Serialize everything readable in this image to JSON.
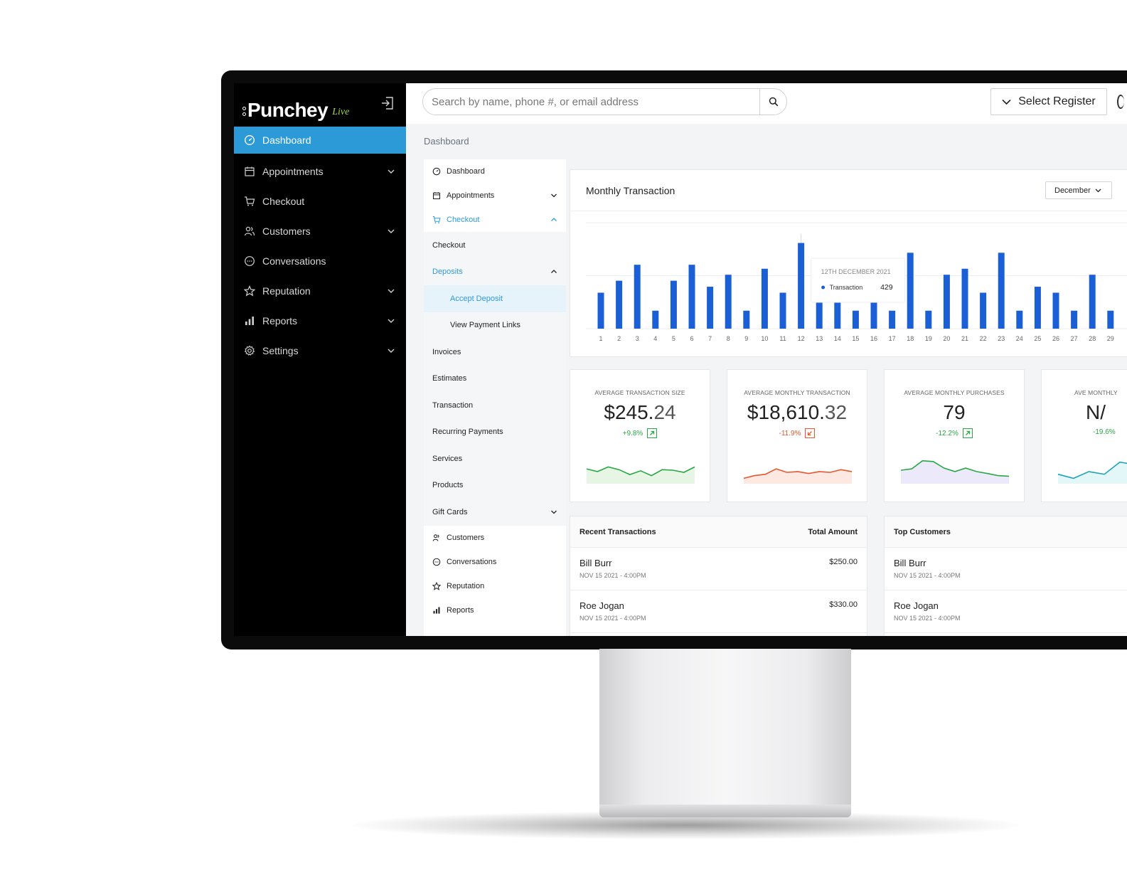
{
  "brand": {
    "name": "Punchey",
    "live": "Live"
  },
  "sidebar": {
    "items": [
      {
        "label": "Dashboard",
        "icon": "gauge-icon",
        "active": true
      },
      {
        "label": "Appointments",
        "icon": "calendar-icon",
        "expandable": true
      },
      {
        "label": "Checkout",
        "icon": "cart-icon"
      },
      {
        "label": "Customers",
        "icon": "users-icon",
        "expandable": true
      },
      {
        "label": "Conversations",
        "icon": "chat-icon"
      },
      {
        "label": "Reputation",
        "icon": "star-icon",
        "expandable": true
      },
      {
        "label": "Reports",
        "icon": "bar-chart-icon",
        "expandable": true
      },
      {
        "label": "Settings",
        "icon": "gear-icon",
        "expandable": true
      }
    ]
  },
  "topbar": {
    "search_placeholder": "Search by name, phone #, or email address",
    "register_label": "Select Register"
  },
  "breadcrumb": "Dashboard",
  "subnav": {
    "dashboard": "Dashboard",
    "appointments": "Appointments",
    "checkout": "Checkout",
    "checkout_children": {
      "checkout": "Checkout",
      "deposits": "Deposits",
      "accept_deposit": "Accept Deposit",
      "view_payment_links": "View Payment Links",
      "invoices": "Invoices",
      "estimates": "Estimates",
      "transaction": "Transaction",
      "recurring_payments": "Recurring Payments",
      "services": "Services",
      "products": "Products",
      "gift_cards": "Gift Cards"
    },
    "customers": "Customers",
    "conversations": "Conversations",
    "reputation": "Reputation",
    "reports": "Reports"
  },
  "chart_data": {
    "type": "bar",
    "title": "Monthly Transaction",
    "selected_month": "December",
    "categories": [
      "1",
      "2",
      "3",
      "4",
      "5",
      "6",
      "7",
      "8",
      "9",
      "10",
      "11",
      "12",
      "13",
      "14",
      "15",
      "16",
      "17",
      "18",
      "19",
      "20",
      "21",
      "22",
      "23",
      "24",
      "25",
      "26",
      "27",
      "28",
      "29"
    ],
    "values": [
      180,
      240,
      320,
      90,
      240,
      320,
      210,
      270,
      90,
      300,
      180,
      429,
      140,
      140,
      90,
      140,
      90,
      380,
      90,
      270,
      300,
      180,
      380,
      90,
      210,
      180,
      90,
      270,
      90
    ],
    "ylim": [
      0,
      520
    ],
    "grid": true,
    "color": "#1b5fd6",
    "tooltip": {
      "date": "12TH DECEMBER 2021",
      "series": "Transaction",
      "value": "429"
    }
  },
  "stats": [
    {
      "label": "AVERAGE TRANSACTION SIZE",
      "value_main": "$245.",
      "value_dec": "24",
      "delta": "+9.8%",
      "trend": "up",
      "color": "#27a844",
      "fill": "#e6f5e4",
      "spark": [
        0.55,
        0.45,
        0.62,
        0.52,
        0.34,
        0.48,
        0.3,
        0.52,
        0.5,
        0.42,
        0.62
      ]
    },
    {
      "label": "AVERAGE MONTHLY TRANSACTION",
      "value_main": "$18,610.",
      "value_dec": "32",
      "delta": "-11.9%",
      "trend": "down",
      "color": "#e4572e",
      "fill": "#fde8e2",
      "spark": [
        0.2,
        0.3,
        0.35,
        0.55,
        0.42,
        0.45,
        0.38,
        0.45,
        0.42,
        0.52,
        0.45
      ]
    },
    {
      "label": "AVERAGE MONTHLY PURCHASES",
      "value_main": "79",
      "value_dec": "",
      "delta": "-12.2%",
      "trend": "up",
      "color": "#27a844",
      "fill": "#ece9fb",
      "spark": [
        0.5,
        0.55,
        0.85,
        0.82,
        0.58,
        0.45,
        0.58,
        0.45,
        0.38,
        0.3,
        0.28
      ]
    },
    {
      "label": "AVE MONTHLY",
      "value_main": "N/",
      "value_dec": "",
      "delta": "-19.6%",
      "trend": "up",
      "color": "#1fa2b8",
      "fill": "#e3f6f8",
      "spark": [
        0.35,
        0.2,
        0.45,
        0.35,
        0.8,
        0.7,
        0.85,
        0.8
      ]
    }
  ],
  "recent_transactions": {
    "title": "Recent Transactions",
    "amount_header": "Total Amount",
    "rows": [
      {
        "name": "Bill Burr",
        "date": "NOV 15 2021 - 4:00PM",
        "amount": "$250.00"
      },
      {
        "name": "Roe Jogan",
        "date": "NOV 15 2021 - 4:00PM",
        "amount": "$330.00"
      }
    ]
  },
  "top_customers": {
    "title": "Top Customers",
    "rows": [
      {
        "name": "Bill Burr",
        "date": "NOV 15 2021 - 4:00PM"
      },
      {
        "name": "Roe Jogan",
        "date": "NOV 15 2021 - 4:00PM"
      }
    ]
  }
}
